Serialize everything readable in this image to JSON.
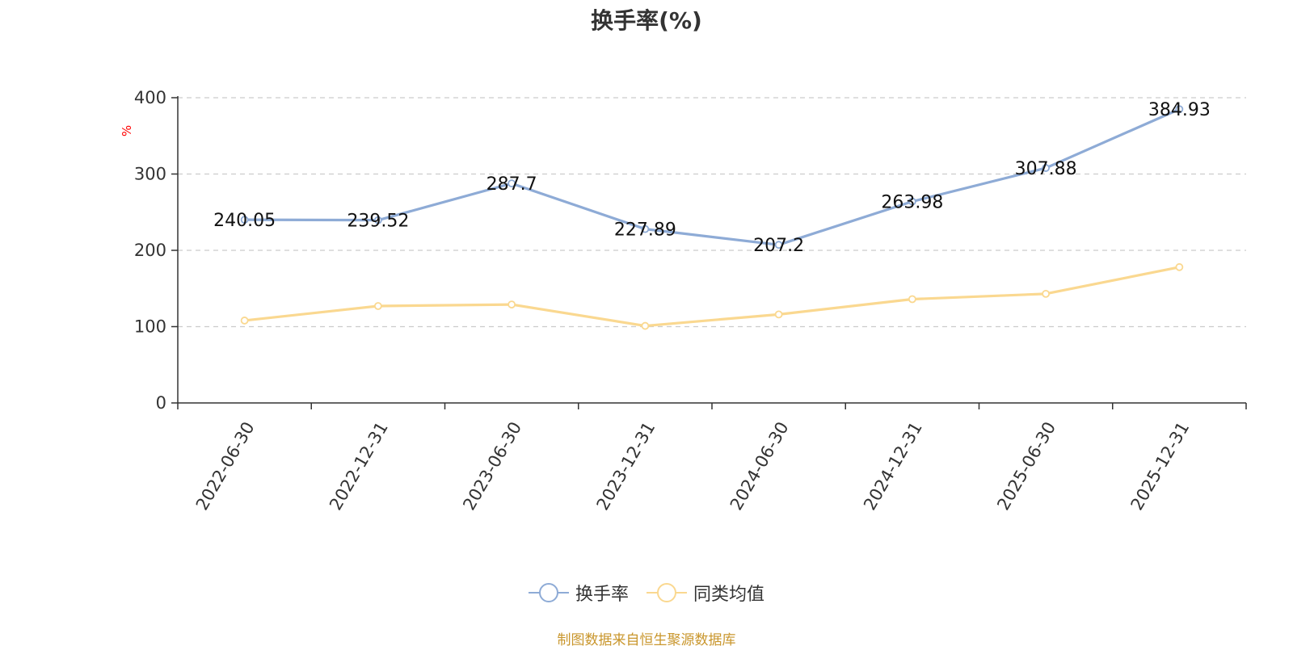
{
  "title": "换手率(%)",
  "yunit": "%",
  "source": "制图数据来自恒生聚源数据库",
  "colors": {
    "series1": "#8eabd6",
    "series2": "#fad890",
    "unit": "#ff0000",
    "source": "#c9962c",
    "grid": "#cccccc",
    "axis": "#333333",
    "text": "#333333"
  },
  "legend_icon": "circle-line-icon",
  "chart_data": {
    "type": "line",
    "title": "换手率(%)",
    "ylabel": "%",
    "ylim": [
      0,
      400
    ],
    "yticks": [
      0,
      100,
      200,
      300,
      400
    ],
    "grid": true,
    "legend_position": "bottom-center",
    "categories": [
      "2022-06-30",
      "2022-12-31",
      "2023-06-30",
      "2023-12-31",
      "2024-06-30",
      "2024-12-31",
      "2025-06-30",
      "2025-12-31"
    ],
    "series": [
      {
        "name": "换手率",
        "values": [
          240.05,
          239.52,
          287.7,
          227.89,
          207.2,
          263.98,
          307.88,
          384.93
        ],
        "labels": [
          "240.05",
          "239.52",
          "287.7",
          "227.89",
          "207.2",
          "263.98",
          "307.88",
          "384.93"
        ],
        "show_labels": true
      },
      {
        "name": "同类均值",
        "values": [
          108,
          127,
          129,
          101,
          116,
          136,
          143,
          178
        ],
        "show_labels": false
      }
    ]
  }
}
